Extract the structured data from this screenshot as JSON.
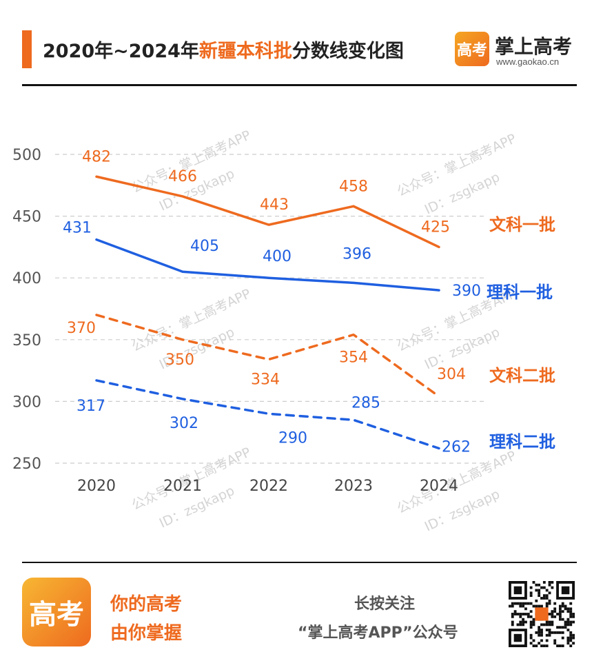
{
  "header": {
    "title_prefix": "2020年~2024年",
    "title_highlight": "新疆本科批",
    "title_suffix": "分数线变化图",
    "brand_logo_text": "高考",
    "brand_name": "掌上高考",
    "brand_url": "www.gaokao.cn"
  },
  "watermark": {
    "line1": "公众号：掌上高考APP",
    "line2": "ID：zsgkapp"
  },
  "chart_data": {
    "type": "line",
    "x": [
      "2020",
      "2021",
      "2022",
      "2023",
      "2024"
    ],
    "ylim": [
      250,
      500
    ],
    "yticks": [
      500,
      450,
      400,
      350,
      300,
      250
    ],
    "grid": true,
    "series": [
      {
        "name": "文科一批",
        "values": [
          482,
          466,
          443,
          458,
          425
        ],
        "color": "#ee6a1f",
        "style": "solid"
      },
      {
        "name": "理科一批",
        "values": [
          431,
          405,
          400,
          396,
          390
        ],
        "color": "#1f5fe0",
        "style": "solid"
      },
      {
        "name": "文科二批",
        "values": [
          370,
          350,
          334,
          354,
          304
        ],
        "color": "#ee6a1f",
        "style": "dashed"
      },
      {
        "name": "理科二批",
        "values": [
          317,
          302,
          290,
          285,
          262
        ],
        "color": "#1f5fe0",
        "style": "dashed"
      }
    ]
  },
  "footer": {
    "logo_text": "高考",
    "slogan_line1": "你的高考",
    "slogan_line2": "由你掌握",
    "follow_line1": "长按关注",
    "follow_line2": "“掌上高考APP”公众号"
  },
  "colors": {
    "accent": "#ee6a1f",
    "blue": "#1f5fe0",
    "grid": "#cccccc"
  }
}
